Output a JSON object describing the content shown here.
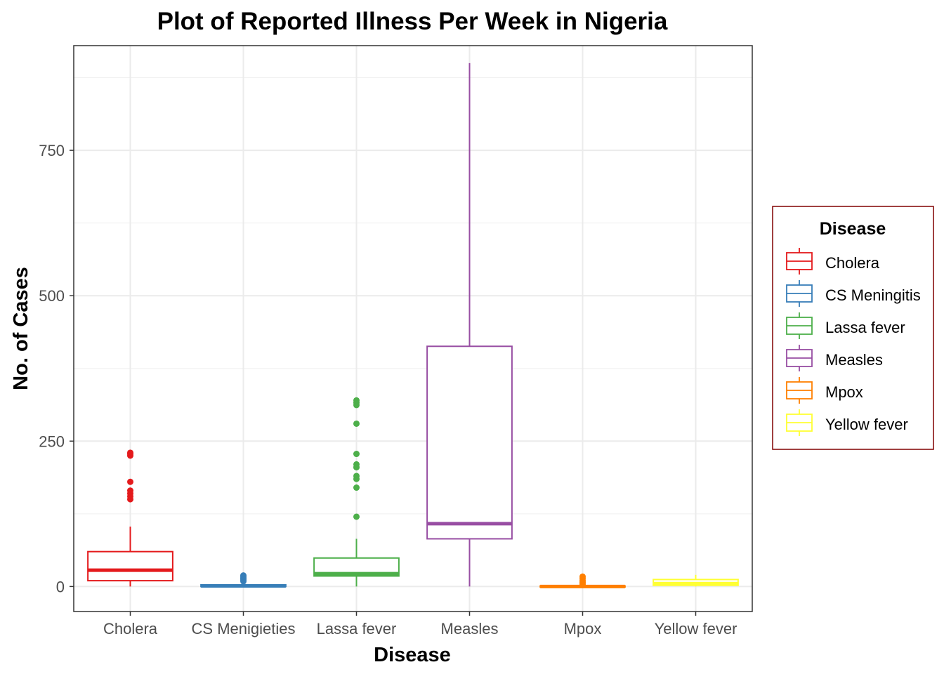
{
  "chart_data": {
    "type": "boxplot",
    "title": "Plot of Reported Illness Per Week in Nigeria",
    "xlabel": "Disease",
    "ylabel": "No. of Cases",
    "ylim": [
      -43,
      930
    ],
    "yticks": [
      0,
      250,
      500,
      750
    ],
    "grid": true,
    "categories": [
      "Cholera",
      "CS Menigieties",
      "Lassa fever",
      "Measles",
      "Mpox",
      "Yellow fever"
    ],
    "series": [
      {
        "name": "Cholera",
        "color": "#E41A1C",
        "whisker_low": 0,
        "q1": 10,
        "median": 28,
        "q3": 60,
        "whisker_high": 103,
        "outliers": [
          150,
          155,
          160,
          165,
          180,
          225,
          228,
          230
        ]
      },
      {
        "name": "CS Meningitis",
        "color": "#377EB8",
        "whisker_low": 0,
        "q1": 0,
        "median": 1,
        "q3": 3,
        "whisker_high": 7,
        "outliers": [
          9,
          11,
          13,
          15,
          17,
          19
        ]
      },
      {
        "name": "Lassa fever",
        "color": "#4DAF4A",
        "whisker_low": 0,
        "q1": 18,
        "median": 22,
        "q3": 49,
        "whisker_high": 82,
        "outliers": [
          120,
          170,
          185,
          190,
          205,
          210,
          228,
          280,
          312,
          316,
          320
        ]
      },
      {
        "name": "Measles",
        "color": "#984EA3",
        "whisker_low": 0,
        "q1": 82,
        "median": 108,
        "q3": 413,
        "whisker_high": 900,
        "outliers": []
      },
      {
        "name": "Mpox",
        "color": "#FF7F00",
        "whisker_low": 0,
        "q1": 0,
        "median": 0,
        "q3": 1,
        "whisker_high": 2,
        "outliers": [
          4,
          7,
          10,
          14,
          17
        ]
      },
      {
        "name": "Yellow fever",
        "color": "#FFFF33",
        "whisker_low": 0,
        "q1": 2,
        "median": 5,
        "q3": 12,
        "whisker_high": 20,
        "outliers": []
      }
    ],
    "legend": {
      "title": "Disease",
      "position": "right",
      "border_color": "#800000",
      "entries": [
        "Cholera",
        "CS Meningitis",
        "Lassa fever",
        "Measles",
        "Mpox",
        "Yellow fever"
      ]
    }
  }
}
